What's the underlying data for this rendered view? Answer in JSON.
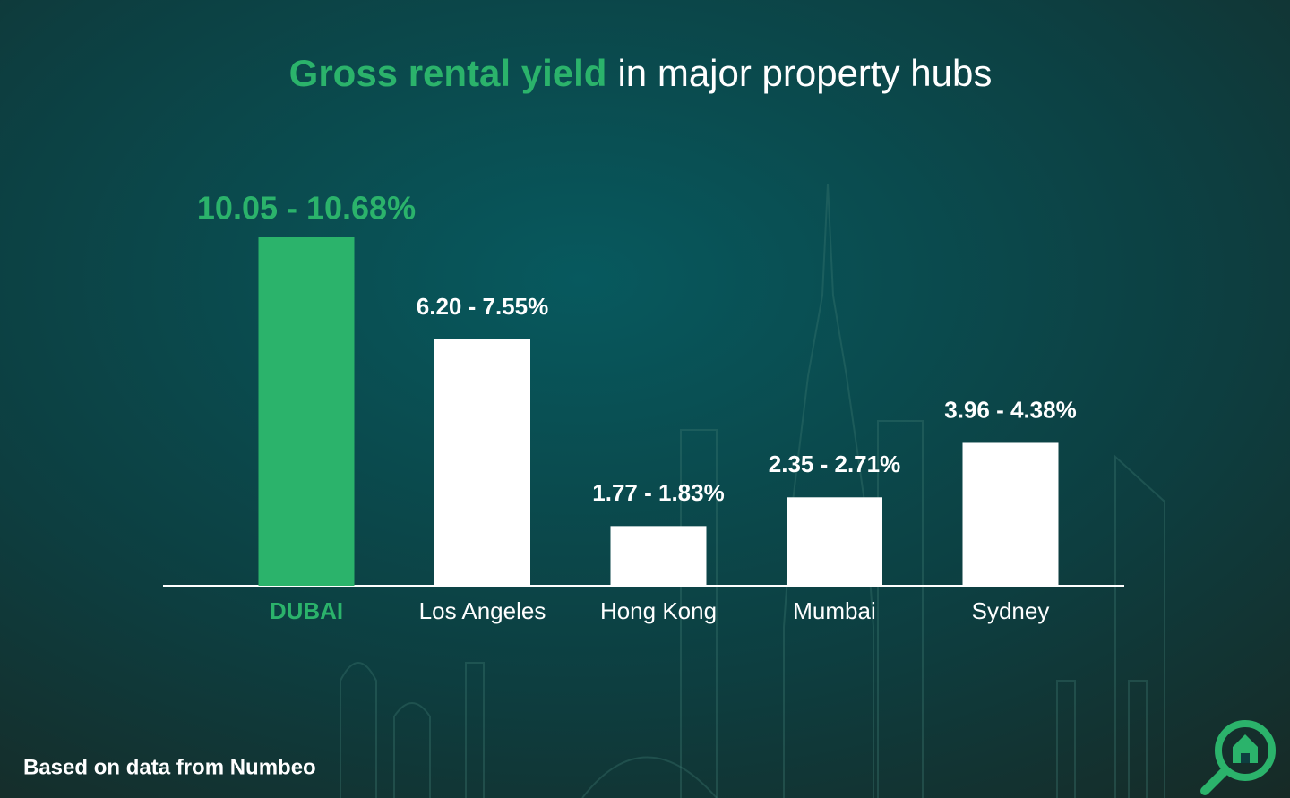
{
  "chart_data": {
    "type": "bar",
    "title_highlight": "Gross rental yield",
    "title_rest": "in major property hubs",
    "categories": [
      "DUBAI",
      "Los Angeles",
      "Hong Kong",
      "Mumbai",
      "Sydney"
    ],
    "ranges": [
      [
        10.05,
        10.68
      ],
      [
        6.2,
        7.55
      ],
      [
        1.77,
        1.83
      ],
      [
        2.35,
        2.71
      ],
      [
        3.96,
        4.38
      ]
    ],
    "value_labels": [
      "10.05 - 10.68%",
      "6.20 - 7.55%",
      "1.77 - 1.83%",
      "2.35 - 2.71%",
      "3.96 - 4.38%"
    ],
    "colors": [
      "#2bb36b",
      "#ffffff",
      "#ffffff",
      "#ffffff",
      "#ffffff"
    ],
    "ylim": [
      0,
      10.68
    ],
    "footnote": "Based on data from Numbeo"
  }
}
